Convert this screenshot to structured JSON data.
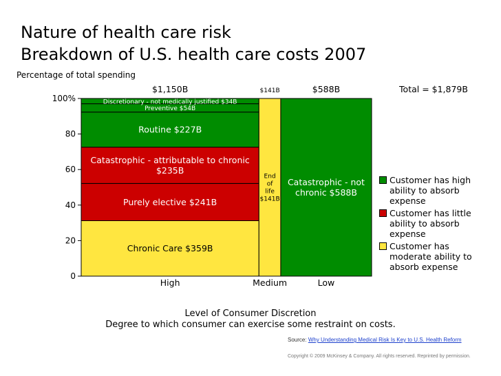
{
  "title_line1": "Nature of health care risk",
  "title_line2": "Breakdown of U.S. health care costs 2007",
  "colors": {
    "green": "#008c00",
    "red": "#cc0000",
    "yellow": "#ffe640"
  },
  "chart_data": {
    "type": "mekko",
    "title": "Breakdown of U.S. health care costs 2007",
    "ylabel": "Percentage of total spending",
    "ylim": [
      0,
      100
    ],
    "yticks": [
      "0",
      "20",
      "40",
      "60",
      "80",
      "100%"
    ],
    "xlabel_line1": "Level of Consumer Discretion",
    "xlabel_line2": "Degree to which consumer can exercise some restraint on costs.",
    "total_label": "Total = $1,879B",
    "columns": [
      {
        "name": "High",
        "total": 1150,
        "total_label": "$1,150B",
        "segments": [
          {
            "label": "Chronic Care $359B",
            "value": 359,
            "color": "yellow"
          },
          {
            "label": "Purely elective $241B",
            "value": 241,
            "color": "red"
          },
          {
            "label": "Catastrophic - attributable to chronic $235B",
            "value": 235,
            "color": "red"
          },
          {
            "label": "Routine $227B",
            "value": 227,
            "color": "green"
          },
          {
            "label": "Preventive $54B",
            "value": 54,
            "color": "green"
          },
          {
            "label": "Discretionary - not medically justified $34B",
            "value": 34,
            "color": "green"
          }
        ]
      },
      {
        "name": "Medium",
        "total": 141,
        "total_label": "$141B",
        "segments": [
          {
            "label": "End of life $141B",
            "value": 141,
            "color": "yellow"
          }
        ]
      },
      {
        "name": "Low",
        "total": 588,
        "total_label": "$588B",
        "segments": [
          {
            "label": "Catastrophic - not chronic $588B",
            "value": 588,
            "color": "green"
          }
        ]
      }
    ],
    "legend": [
      {
        "label": "Customer has high ability to absorb expense",
        "color": "green"
      },
      {
        "label": "Customer has little ability to absorb expense",
        "color": "red"
      },
      {
        "label": "Customer has moderate ability to absorb expense",
        "color": "yellow"
      }
    ]
  },
  "source_prefix": "Source:",
  "source_link": "Why Understanding Medical Risk Is Key to U.S. Health Reform",
  "copyright": "Copyright © 2009 McKinsey & Company. All rights reserved. Reprinted by permission."
}
